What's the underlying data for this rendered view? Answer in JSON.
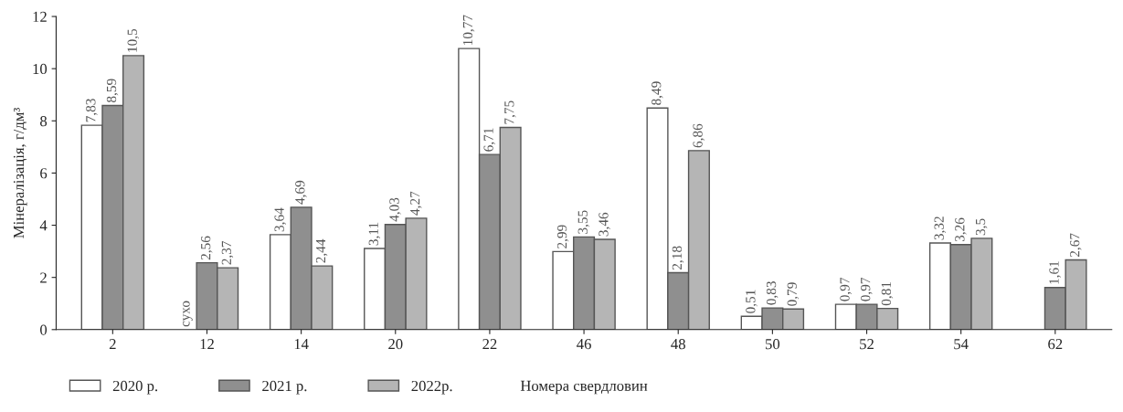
{
  "chart_data": {
    "type": "bar",
    "xlabel": "Номера свердловин",
    "ylabel": "Мінералізація, г/дм³",
    "categories": [
      "2",
      "12",
      "14",
      "20",
      "22",
      "46",
      "48",
      "50",
      "52",
      "54",
      "62"
    ],
    "ylim": [
      0,
      12
    ],
    "yticks": [
      0,
      2,
      4,
      6,
      8,
      10,
      12
    ],
    "legend": "bottom",
    "grid": false,
    "series": [
      {
        "name": "2020 р.",
        "color": "#ffffff",
        "values": [
          7.83,
          null,
          3.64,
          3.11,
          10.77,
          2.99,
          8.49,
          0.51,
          0.97,
          3.32,
          null
        ],
        "value_labels": [
          "7,83",
          "сухо",
          "3,64",
          "3,11",
          "10,77",
          "2,99",
          "8,49",
          "0,51",
          "0,97",
          "3,32",
          null
        ]
      },
      {
        "name": "2021 р.",
        "color": "#8f8f8f",
        "values": [
          8.59,
          2.56,
          4.69,
          4.03,
          6.71,
          3.55,
          2.18,
          0.83,
          0.97,
          3.26,
          1.61
        ],
        "value_labels": [
          "8,59",
          "2,56",
          "4,69",
          "4,03",
          "6,71",
          "3,55",
          "2,18",
          "0,83",
          "0,97",
          "3,26",
          "1,61"
        ]
      },
      {
        "name": "2022р.",
        "color": "#b5b5b5",
        "values": [
          10.5,
          2.37,
          2.44,
          4.27,
          7.75,
          3.46,
          6.86,
          0.79,
          0.81,
          3.5,
          2.67
        ],
        "value_labels": [
          "10,5",
          "2,37",
          "2,44",
          "4,27",
          "7,75",
          "3,46",
          "6,86",
          "0,79",
          "0,81",
          "3,5",
          "2,67"
        ]
      }
    ]
  }
}
